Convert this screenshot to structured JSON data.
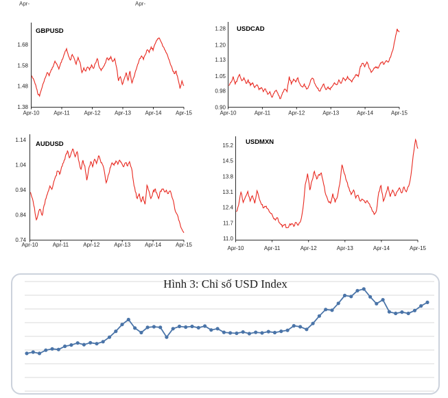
{
  "page": {
    "background": "#ffffff"
  },
  "top_fragments": [
    "Apr-",
    "Apr-"
  ],
  "colors": {
    "fx_line": "#e8271e",
    "usd_index_line": "#4a74a8",
    "axis": "#2b2b2b",
    "tick_text": "#262626",
    "chart_title_text": "#000000",
    "gridline": "#d9d9d9",
    "panel_border": "#ccd2dc"
  },
  "chart_data": [
    {
      "id": "gbpusd",
      "type": "line",
      "title": "GBPUSD",
      "yticks": [
        {
          "label": "1.68",
          "v": 1.68
        },
        {
          "label": "1.58",
          "v": 1.58
        },
        {
          "label": "1.48",
          "v": 1.48
        },
        {
          "label": "1.38",
          "v": 1.38
        }
      ],
      "xticks": [
        "Apr-10",
        "Apr-11",
        "Apr-12",
        "Apr-13",
        "Apr-14",
        "Apr-15"
      ],
      "ylim": [
        1.38,
        1.78
      ],
      "values": [
        1.53,
        1.51,
        1.485,
        1.445,
        1.432,
        1.465,
        1.495,
        1.52,
        1.545,
        1.53,
        1.558,
        1.572,
        1.6,
        1.585,
        1.562,
        1.592,
        1.61,
        1.638,
        1.66,
        1.625,
        1.605,
        1.632,
        1.612,
        1.585,
        1.618,
        1.595,
        1.545,
        1.568,
        1.552,
        1.572,
        1.558,
        1.582,
        1.565,
        1.59,
        1.612,
        1.572,
        1.555,
        1.57,
        1.588,
        1.615,
        1.605,
        1.622,
        1.598,
        1.612,
        1.57,
        1.505,
        1.525,
        1.488,
        1.515,
        1.545,
        1.508,
        1.552,
        1.495,
        1.522,
        1.555,
        1.585,
        1.612,
        1.625,
        1.608,
        1.632,
        1.655,
        1.642,
        1.668,
        1.652,
        1.682,
        1.7,
        1.712,
        1.695,
        1.672,
        1.655,
        1.638,
        1.612,
        1.585,
        1.562,
        1.54,
        1.552,
        1.512,
        1.468,
        1.505,
        1.482
      ]
    },
    {
      "id": "usdcad",
      "type": "line",
      "title": "USDCAD",
      "yticks": [
        {
          "label": "1.28",
          "v": 1.28
        },
        {
          "label": "1.20",
          "v": 1.2
        },
        {
          "label": "1.13",
          "v": 1.13
        },
        {
          "label": "1.05",
          "v": 1.05
        },
        {
          "label": "0.98",
          "v": 0.98
        },
        {
          "label": "0.90",
          "v": 0.9
        }
      ],
      "xticks": [
        "Apr-10",
        "Apr-11",
        "Apr-12",
        "Apr-13",
        "Apr-14",
        "Apr-15"
      ],
      "ylim": [
        0.9,
        1.28
      ],
      "values": [
        1.005,
        1.02,
        1.048,
        1.012,
        1.035,
        1.058,
        1.028,
        1.042,
        1.015,
        1.032,
        1.005,
        1.018,
        0.995,
        1.008,
        0.985,
        0.995,
        0.975,
        0.988,
        0.962,
        0.975,
        0.948,
        0.968,
        0.982,
        0.958,
        0.942,
        0.972,
        0.988,
        0.975,
        1.048,
        1.012,
        1.035,
        1.022,
        1.042,
        1.012,
        0.998,
        1.012,
        0.988,
        1.002,
        1.032,
        1.038,
        1.012,
        0.992,
        0.978,
        0.995,
        1.012,
        0.985,
        0.998,
        0.985,
        1.002,
        1.018,
        1.008,
        1.032,
        1.015,
        1.042,
        1.028,
        1.048,
        1.035,
        1.022,
        1.042,
        1.058,
        1.048,
        1.098,
        1.112,
        1.095,
        1.118,
        1.088,
        1.068,
        1.082,
        1.095,
        1.088,
        1.105,
        1.118,
        1.108,
        1.125,
        1.118,
        1.142,
        1.175,
        1.225,
        1.278,
        1.262
      ]
    },
    {
      "id": "audusd",
      "type": "line",
      "title": "AUDUSD",
      "yticks": [
        {
          "label": "1.14",
          "v": 1.14
        },
        {
          "label": "1.04",
          "v": 1.04
        },
        {
          "label": "0.94",
          "v": 0.94
        },
        {
          "label": "0.84",
          "v": 0.84
        },
        {
          "label": "0.74",
          "v": 0.74
        }
      ],
      "xticks": [
        "Apr-10",
        "Apr-11",
        "Apr-12",
        "Apr-13",
        "Apr-14",
        "Apr-15"
      ],
      "ylim": [
        0.74,
        1.14
      ],
      "values": [
        0.93,
        0.905,
        0.868,
        0.82,
        0.845,
        0.862,
        0.838,
        0.878,
        0.905,
        0.932,
        0.955,
        0.942,
        0.972,
        0.995,
        1.015,
        1.002,
        1.032,
        1.048,
        1.075,
        1.095,
        1.068,
        1.088,
        1.102,
        1.072,
        1.092,
        1.052,
        1.022,
        1.058,
        1.035,
        0.978,
        1.025,
        1.052,
        1.032,
        1.062,
        1.045,
        1.075,
        1.058,
        1.042,
        1.015,
        0.968,
        0.998,
        1.028,
        1.048,
        1.038,
        1.055,
        1.042,
        1.058,
        1.045,
        1.032,
        1.048,
        1.035,
        1.052,
        1.028,
        0.975,
        0.932,
        0.905,
        0.925,
        0.892,
        0.912,
        0.882,
        0.958,
        0.935,
        0.905,
        0.928,
        0.942,
        0.928,
        0.905,
        0.935,
        0.942,
        0.932,
        0.938,
        0.925,
        0.935,
        0.908,
        0.878,
        0.848,
        0.832,
        0.805,
        0.782,
        0.768
      ]
    },
    {
      "id": "usdmxn",
      "type": "line",
      "title": "USDMXN",
      "yticks": [
        {
          "label": "15.2",
          "v": 15.2
        },
        {
          "label": "14.5",
          "v": 14.5
        },
        {
          "label": "13.8",
          "v": 13.8
        },
        {
          "label": "13.1",
          "v": 13.1
        },
        {
          "label": "12.4",
          "v": 12.4
        },
        {
          "label": "11.7",
          "v": 11.7
        },
        {
          "label": "11.0",
          "v": 11.0
        }
      ],
      "xticks": [
        "Apr-10",
        "Apr-11",
        "Apr-12",
        "Apr-13",
        "Apr-14",
        "Apr-15"
      ],
      "ylim": [
        11.0,
        15.5
      ],
      "values": [
        12.2,
        12.5,
        13.08,
        12.62,
        12.88,
        13.12,
        12.68,
        12.92,
        12.58,
        13.15,
        12.78,
        12.52,
        12.38,
        12.45,
        12.3,
        12.12,
        11.95,
        11.82,
        11.92,
        11.68,
        11.52,
        11.62,
        11.48,
        11.58,
        11.66,
        11.54,
        11.72,
        11.6,
        11.78,
        12.35,
        13.42,
        13.92,
        13.18,
        13.62,
        14.02,
        13.68,
        13.88,
        13.95,
        13.45,
        12.95,
        12.68,
        12.58,
        13.02,
        12.62,
        12.88,
        13.45,
        14.32,
        13.92,
        13.58,
        13.28,
        12.98,
        13.18,
        12.82,
        12.95,
        12.68,
        12.75,
        12.62,
        12.7,
        12.55,
        12.3,
        12.08,
        12.25,
        13.08,
        13.38,
        12.68,
        12.98,
        13.35,
        12.88,
        13.18,
        12.92,
        13.12,
        13.28,
        13.05,
        13.32,
        13.1,
        13.35,
        13.85,
        14.75,
        15.45,
        15.05
      ]
    },
    {
      "id": "usd_index",
      "type": "line",
      "title": "Hình 3: Chỉ số USD Index",
      "marker": "circle",
      "gridline_count": 9,
      "ylim": [
        68.4,
        102.1
      ],
      "values": [
        80.0,
        80.4,
        80.0,
        81.0,
        81.4,
        81.2,
        82.2,
        82.6,
        83.2,
        82.7,
        83.3,
        83.0,
        83.6,
        85.0,
        86.8,
        88.9,
        90.4,
        87.8,
        86.4,
        88.0,
        88.2,
        88.0,
        85.0,
        87.6,
        88.3,
        88.1,
        88.3,
        87.9,
        88.4,
        87.2,
        87.6,
        86.5,
        86.3,
        86.2,
        86.6,
        86.1,
        86.5,
        86.3,
        86.7,
        86.4,
        86.8,
        87.1,
        88.5,
        88.2,
        87.4,
        89.2,
        91.5,
        93.5,
        93.3,
        95.4,
        97.8,
        97.5,
        99.3,
        99.8,
        97.4,
        95.3,
        96.5,
        92.8,
        92.3,
        92.7,
        92.3,
        93.2,
        94.6,
        95.7
      ]
    }
  ]
}
